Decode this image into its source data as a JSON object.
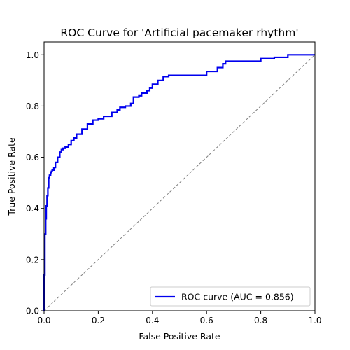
{
  "chart_data": {
    "type": "line",
    "title": "ROC Curve for 'Artificial pacemaker rhythm'",
    "xlabel": "False Positive Rate",
    "ylabel": "True Positive Rate",
    "xlim": [
      0.0,
      1.0
    ],
    "ylim": [
      0.0,
      1.05
    ],
    "xticks": [
      "0.0",
      "0.2",
      "0.4",
      "0.6",
      "0.8",
      "1.0"
    ],
    "yticks": [
      "0.0",
      "0.2",
      "0.4",
      "0.6",
      "0.8",
      "1.0"
    ],
    "grid": false,
    "legend": {
      "placement": "lower-right"
    },
    "series": [
      {
        "name": "ROC curve (AUC = 0.856)",
        "color": "#0000ee",
        "x": [
          0.0,
          0.0,
          0.003,
          0.006,
          0.008,
          0.011,
          0.014,
          0.017,
          0.02,
          0.024,
          0.027,
          0.03,
          0.036,
          0.042,
          0.05,
          0.058,
          0.064,
          0.07,
          0.078,
          0.09,
          0.1,
          0.11,
          0.12,
          0.14,
          0.16,
          0.18,
          0.2,
          0.22,
          0.25,
          0.27,
          0.28,
          0.3,
          0.32,
          0.33,
          0.35,
          0.36,
          0.38,
          0.39,
          0.4,
          0.42,
          0.44,
          0.46,
          0.5,
          0.55,
          0.6,
          0.64,
          0.66,
          0.67,
          0.7,
          0.75,
          0.8,
          0.85,
          0.9,
          1.0
        ],
        "y": [
          0.0,
          0.14,
          0.3,
          0.36,
          0.41,
          0.45,
          0.48,
          0.52,
          0.53,
          0.54,
          0.545,
          0.55,
          0.56,
          0.58,
          0.6,
          0.62,
          0.63,
          0.635,
          0.64,
          0.65,
          0.665,
          0.675,
          0.69,
          0.71,
          0.73,
          0.745,
          0.75,
          0.76,
          0.775,
          0.785,
          0.795,
          0.8,
          0.81,
          0.835,
          0.84,
          0.85,
          0.86,
          0.87,
          0.885,
          0.9,
          0.915,
          0.92,
          0.92,
          0.92,
          0.935,
          0.95,
          0.965,
          0.975,
          0.975,
          0.975,
          0.985,
          0.99,
          1.0,
          1.0
        ]
      }
    ],
    "reference_line": {
      "style": "dashed",
      "color": "#808080",
      "x": [
        0.0,
        1.0
      ],
      "y": [
        0.0,
        1.0
      ]
    }
  }
}
